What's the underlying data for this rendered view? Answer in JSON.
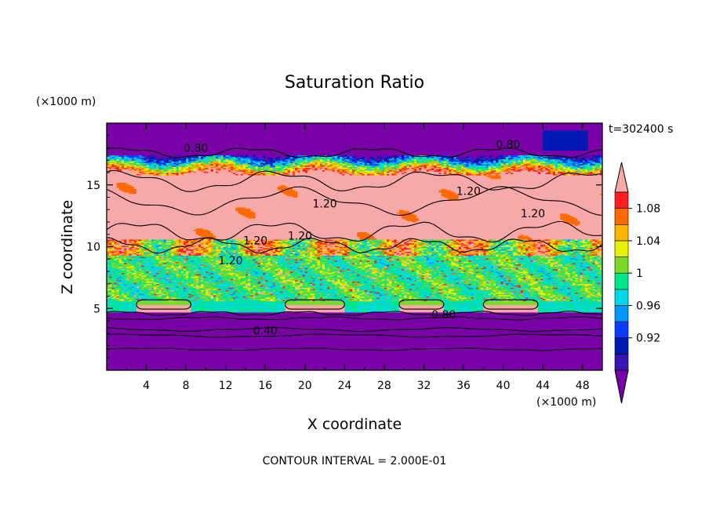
{
  "chart_data": {
    "type": "heatmap",
    "title": "Saturation Ratio",
    "xlabel": "X coordinate",
    "ylabel": "Z coordinate",
    "x_unit": "(×1000 m)",
    "y_unit": "(×1000 m)",
    "time_label": "t=302400 s",
    "footer": "CONTOUR INTERVAL = 2.000E-01",
    "xlim": [
      0,
      50
    ],
    "ylim": [
      0,
      20
    ],
    "x_ticks": [
      "4",
      "8",
      "12",
      "16",
      "20",
      "24",
      "28",
      "32",
      "36",
      "40",
      "44",
      "48"
    ],
    "y_ticks": [
      "5",
      "10",
      "15"
    ],
    "colorbar": {
      "levels": [
        0.88,
        0.9,
        0.92,
        0.94,
        0.96,
        0.98,
        1.0,
        1.02,
        1.04,
        1.06,
        1.08,
        1.1
      ],
      "tick_labels": [
        "0.92",
        "0.96",
        "1",
        "1.04",
        "1.08"
      ],
      "colors": [
        "#7a00a8",
        "#3a14b0",
        "#0018b4",
        "#0a3cff",
        "#0096ff",
        "#00d8e8",
        "#00e68c",
        "#7cd92a",
        "#e8f000",
        "#ffb400",
        "#ff6a00",
        "#ff1e1e",
        "#f7a9a8"
      ]
    },
    "contour_labels": [
      "0.80",
      "0.80",
      "1.20",
      "1.20",
      "1.20",
      "1.20",
      "1.20",
      "1.20",
      "0.80",
      "0.40"
    ],
    "grid": false,
    "legend": "right"
  }
}
